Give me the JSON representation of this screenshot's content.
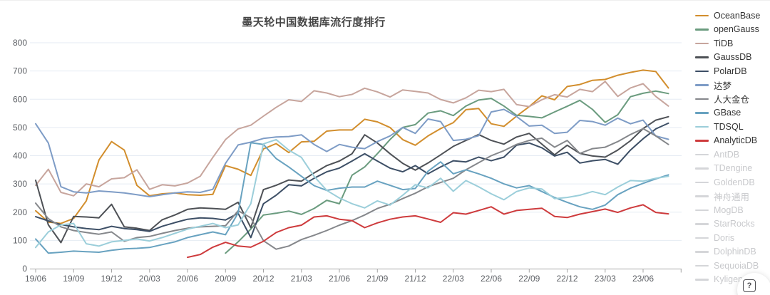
{
  "chart_data": {
    "type": "line",
    "title": "墨天轮中国数据库流行度排行",
    "x_axis": {
      "tick_labels": [
        "19/06",
        "19/09",
        "19/12",
        "20/03",
        "20/06",
        "20/09",
        "20/12",
        "21/03",
        "21/06",
        "21/09",
        "21/12",
        "22/03",
        "22/06",
        "22/09",
        "22/12",
        "23/03",
        "23/06"
      ],
      "points_per_quarter": 3,
      "n_points": 51
    },
    "y_axis": {
      "min": 0,
      "max": 800,
      "tick_interval": 100,
      "tick_labels": [
        0,
        100,
        200,
        300,
        400,
        500,
        600,
        700,
        800
      ]
    },
    "grid": true,
    "legend_position": "right",
    "series": [
      {
        "name": "OceanBase",
        "color": "#d28e2d",
        "enabled": true,
        "values": [
          205,
          165,
          160,
          178,
          240,
          385,
          450,
          420,
          295,
          258,
          265,
          268,
          262,
          260,
          263,
          365,
          352,
          330,
          424,
          443,
          411,
          449,
          451,
          487,
          491,
          491,
          529,
          520,
          500,
          457,
          437,
          470,
          496,
          517,
          563,
          567,
          513,
          504,
          540,
          574,
          612,
          598,
          645,
          652,
          667,
          670,
          685,
          695,
          703,
          698,
          640
        ]
      },
      {
        "name": "openGauss",
        "color": "#6a9b7e",
        "enabled": true,
        "values": [
          null,
          null,
          null,
          null,
          null,
          null,
          null,
          null,
          null,
          null,
          null,
          null,
          null,
          null,
          null,
          55,
          95,
          140,
          190,
          196,
          204,
          192,
          213,
          242,
          230,
          331,
          360,
          407,
          457,
          500,
          510,
          551,
          559,
          542,
          576,
          597,
          603,
          576,
          543,
          539,
          534,
          555,
          575,
          596,
          564,
          518,
          545,
          609,
          621,
          629,
          620
        ]
      },
      {
        "name": "TiDB",
        "color": "#c7a59d",
        "enabled": true,
        "values": [
          295,
          352,
          270,
          258,
          300,
          290,
          318,
          322,
          350,
          281,
          297,
          293,
          303,
          327,
          394,
          457,
          495,
          508,
          540,
          571,
          598,
          592,
          630,
          622,
          609,
          617,
          639,
          626,
          608,
          633,
          628,
          622,
          599,
          587,
          605,
          632,
          627,
          635,
          581,
          574,
          598,
          616,
          608,
          635,
          627,
          663,
          610,
          640,
          655,
          610,
          576
        ]
      },
      {
        "name": "GaussDB",
        "color": "#4e5156",
        "enabled": true,
        "values": [
          313,
          155,
          92,
          185,
          183,
          180,
          228,
          148,
          143,
          135,
          173,
          190,
          210,
          215,
          213,
          210,
          235,
          145,
          280,
          295,
          314,
          310,
          339,
          365,
          381,
          407,
          474,
          445,
          407,
          373,
          349,
          374,
          403,
          433,
          454,
          475,
          454,
          441,
          466,
          479,
          441,
          403,
          437,
          408,
          399,
          395,
          420,
          453,
          496,
          526,
          538
        ]
      },
      {
        "name": "PolarDB",
        "color": "#3d4f66",
        "enabled": true,
        "values": [
          184,
          169,
          156,
          148,
          142,
          138,
          150,
          142,
          138,
          132,
          150,
          163,
          175,
          180,
          178,
          172,
          196,
          110,
          230,
          260,
          297,
          293,
          320,
          343,
          356,
          381,
          407,
          381,
          356,
          343,
          365,
          336,
          360,
          382,
          378,
          395,
          382,
          395,
          437,
          445,
          428,
          399,
          412,
          374,
          382,
          387,
          370,
          420,
          460,
          495,
          515
        ]
      },
      {
        "name": "达梦",
        "color": "#7e9cc6",
        "enabled": true,
        "values": [
          513,
          445,
          290,
          272,
          268,
          275,
          272,
          268,
          262,
          255,
          262,
          268,
          272,
          270,
          281,
          373,
          438,
          448,
          461,
          466,
          468,
          474,
          440,
          415,
          440,
          430,
          425,
          450,
          470,
          500,
          479,
          530,
          521,
          454,
          458,
          471,
          555,
          564,
          539,
          505,
          508,
          479,
          483,
          525,
          521,
          508,
          533,
          513,
          526,
          470,
          458
        ]
      },
      {
        "name": "人大金仓",
        "color": "#85878b",
        "enabled": true,
        "values": [
          232,
          177,
          148,
          135,
          128,
          122,
          130,
          97,
          110,
          114,
          125,
          135,
          143,
          148,
          150,
          152,
          205,
          180,
          99,
          69,
          80,
          103,
          118,
          135,
          154,
          170,
          190,
          213,
          228,
          248,
          267,
          290,
          305,
          320,
          350,
          375,
          400,
          418,
          440,
          454,
          462,
          430,
          454,
          408,
          425,
          430,
          450,
          475,
          496,
          470,
          440
        ]
      },
      {
        "name": "GBase",
        "color": "#68a2c0",
        "enabled": true,
        "values": [
          105,
          55,
          58,
          62,
          60,
          58,
          65,
          70,
          72,
          75,
          85,
          95,
          110,
          120,
          130,
          120,
          197,
          446,
          440,
          390,
          360,
          327,
          294,
          277,
          285,
          289,
          289,
          310,
          295,
          280,
          284,
          345,
          378,
          336,
          350,
          336,
          320,
          300,
          286,
          294,
          273,
          252,
          235,
          219,
          210,
          225,
          262,
          285,
          302,
          318,
          332
        ]
      },
      {
        "name": "TDSQL",
        "color": "#9bceda",
        "enabled": true,
        "values": [
          75,
          130,
          155,
          160,
          88,
          80,
          95,
          100,
          105,
          98,
          110,
          125,
          140,
          150,
          160,
          145,
          155,
          230,
          442,
          457,
          420,
          394,
          327,
          277,
          250,
          230,
          215,
          240,
          225,
          260,
          297,
          286,
          320,
          274,
          312,
          290,
          265,
          244,
          273,
          286,
          282,
          248,
          252,
          260,
          273,
          262,
          289,
          312,
          310,
          320,
          327
        ]
      },
      {
        "name": "AnalyticDB",
        "color": "#ce3b3d",
        "enabled": true,
        "values": [
          null,
          null,
          null,
          null,
          null,
          null,
          null,
          null,
          null,
          null,
          null,
          null,
          40,
          50,
          76,
          93,
          80,
          76,
          97,
          128,
          145,
          154,
          183,
          187,
          175,
          170,
          145,
          162,
          175,
          183,
          187,
          176,
          164,
          198,
          193,
          206,
          219,
          193,
          206,
          210,
          214,
          185,
          181,
          193,
          202,
          211,
          199,
          215,
          226,
          199,
          194
        ]
      },
      {
        "name": "AntDB",
        "color": "#d5d6d9",
        "enabled": false,
        "values": []
      },
      {
        "name": "TDengine",
        "color": "#d5d6d9",
        "enabled": false,
        "values": []
      },
      {
        "name": "GoldenDB",
        "color": "#d5d6d9",
        "enabled": false,
        "values": []
      },
      {
        "name": "神舟通用",
        "color": "#d5d6d9",
        "enabled": false,
        "values": []
      },
      {
        "name": "MogDB",
        "color": "#d5d6d9",
        "enabled": false,
        "values": []
      },
      {
        "name": "StarRocks",
        "color": "#d5d6d9",
        "enabled": false,
        "values": []
      },
      {
        "name": "Doris",
        "color": "#d5d6d9",
        "enabled": false,
        "values": []
      },
      {
        "name": "DolphinDB",
        "color": "#d5d6d9",
        "enabled": false,
        "values": []
      },
      {
        "name": "SequoiaDB",
        "color": "#d5d6d9",
        "enabled": false,
        "values": []
      },
      {
        "name": "Kyligence",
        "color": "#d5d6d9",
        "enabled": false,
        "values": []
      }
    ],
    "style": {
      "grid_color": "#e5ebf3",
      "axis_color": "#a6a6a6",
      "label_color": "#5e6166",
      "disabled_label_color": "#c8c9cc"
    }
  },
  "help_button": {
    "glyph": "?",
    "icon": "question-box-icon"
  }
}
